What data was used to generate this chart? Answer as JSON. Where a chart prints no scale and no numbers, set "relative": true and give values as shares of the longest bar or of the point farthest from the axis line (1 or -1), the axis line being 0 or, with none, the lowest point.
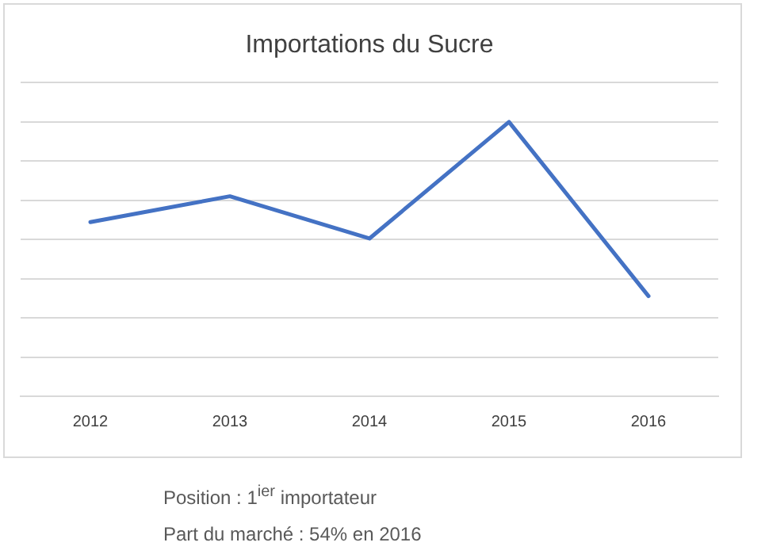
{
  "chart_data": {
    "type": "line",
    "title": "Importations du Sucre",
    "categories": [
      "2012",
      "2013",
      "2014",
      "2015",
      "2016"
    ],
    "series": [
      {
        "color": "#4472c4",
        "values": [
          0.635,
          0.729,
          0.575,
          1,
          0.365
        ]
      }
    ],
    "relative": true,
    "grid": "y",
    "legend": false,
    "marker": "none",
    "line_style": "solid",
    "annotations": [
      "Position : 1$^{ier}$ importateur",
      "Part du marché : 54% en 2016"
    ]
  }
}
